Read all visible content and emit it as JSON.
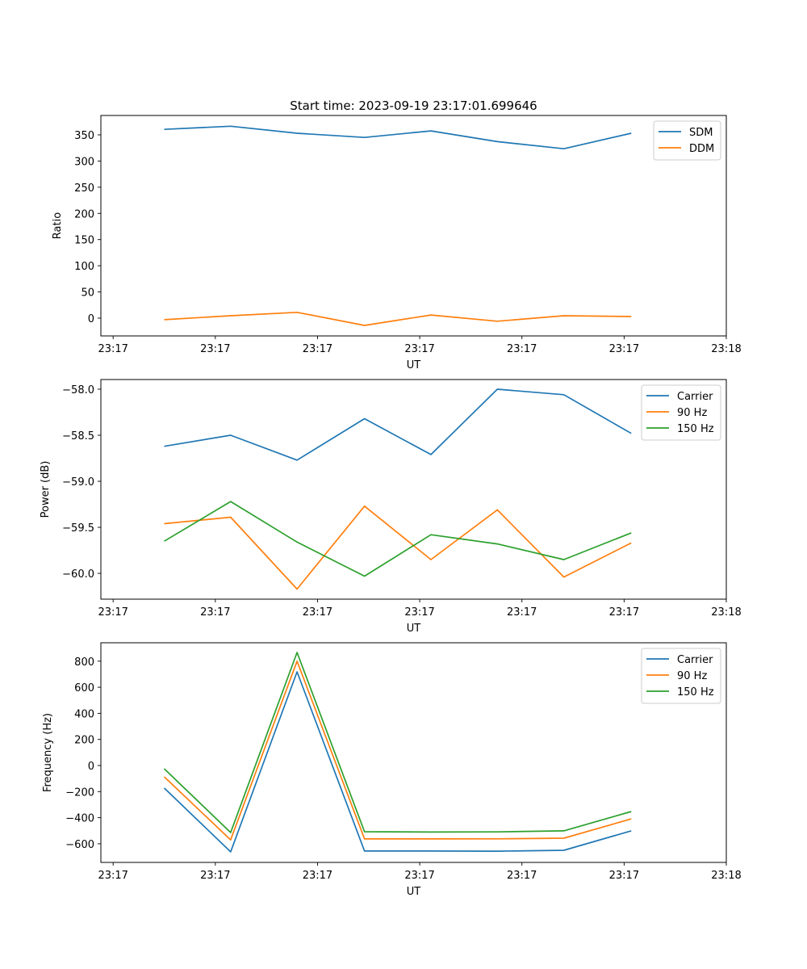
{
  "chart_data": [
    {
      "type": "line",
      "title": "Start time: 2023-09-19 23:17:01.699646",
      "xlabel": "UT",
      "ylabel": "Ratio",
      "x_units": "seconds after 23:17:00",
      "x": [
        5.0,
        11.5,
        18.0,
        24.6,
        31.1,
        37.6,
        44.1,
        50.7
      ],
      "xlim": [
        -1.2,
        60
      ],
      "xticks": [
        0,
        10,
        20,
        30,
        40,
        50,
        60
      ],
      "xtick_labels": [
        "23:17",
        "23:17",
        "23:17",
        "23:17",
        "23:17",
        "23:17",
        "23:18"
      ],
      "ylim": [
        -34,
        387
      ],
      "yticks": [
        0,
        50,
        100,
        150,
        200,
        250,
        300,
        350
      ],
      "ytick_labels": [
        "0",
        "50",
        "100",
        "150",
        "200",
        "250",
        "300",
        "350"
      ],
      "legend": "top-right",
      "series": [
        {
          "name": "SDM",
          "color": "#1f77b4",
          "values": [
            360.5,
            366.5,
            353,
            345,
            357.5,
            337,
            323.5,
            353
          ]
        },
        {
          "name": "DDM",
          "color": "#ff7f0e",
          "values": [
            -3,
            4.5,
            11,
            -14,
            6,
            -6,
            4.5,
            3
          ]
        }
      ]
    },
    {
      "type": "line",
      "title": "",
      "xlabel": "UT",
      "ylabel": "Power (dB)",
      "x_units": "seconds after 23:17:00",
      "x": [
        5.0,
        11.5,
        18.0,
        24.6,
        31.1,
        37.6,
        44.1,
        50.7
      ],
      "xlim": [
        -1.2,
        60
      ],
      "xticks": [
        0,
        10,
        20,
        30,
        40,
        50,
        60
      ],
      "xtick_labels": [
        "23:17",
        "23:17",
        "23:17",
        "23:17",
        "23:17",
        "23:17",
        "23:18"
      ],
      "ylim": [
        -60.28,
        -57.895
      ],
      "yticks": [
        -60.0,
        -59.5,
        -59.0,
        -58.5,
        -58.0
      ],
      "ytick_labels": [
        "−60.0",
        "−59.5",
        "−59.0",
        "−58.5",
        "−58.0"
      ],
      "legend": "top-right",
      "series": [
        {
          "name": "Carrier",
          "color": "#1f77b4",
          "values": [
            -58.62,
            -58.5,
            -58.77,
            -58.32,
            -58.71,
            -58.0,
            -58.06,
            -58.48
          ]
        },
        {
          "name": "90 Hz",
          "color": "#ff7f0e",
          "values": [
            -59.46,
            -59.39,
            -60.17,
            -59.27,
            -59.85,
            -59.31,
            -60.04,
            -59.67
          ]
        },
        {
          "name": "150 Hz",
          "color": "#2ca02c",
          "values": [
            -59.65,
            -59.22,
            -59.66,
            -60.03,
            -59.58,
            -59.68,
            -59.85,
            -59.56
          ]
        }
      ]
    },
    {
      "type": "line",
      "title": "",
      "xlabel": "UT",
      "ylabel": "Frequency (Hz)",
      "x_units": "seconds after 23:17:00",
      "x": [
        5.0,
        11.5,
        18.0,
        24.6,
        31.1,
        37.6,
        44.1,
        50.7
      ],
      "xlim": [
        -1.2,
        60
      ],
      "xticks": [
        0,
        10,
        20,
        30,
        40,
        50,
        60
      ],
      "xtick_labels": [
        "23:17",
        "23:17",
        "23:17",
        "23:17",
        "23:17",
        "23:17",
        "23:18"
      ],
      "ylim": [
        -743,
        941
      ],
      "yticks": [
        -600,
        -400,
        -200,
        0,
        200,
        400,
        600,
        800
      ],
      "ytick_labels": [
        "−600",
        "−400",
        "−200",
        "0",
        "200",
        "400",
        "600",
        "800"
      ],
      "legend": "top-right",
      "series": [
        {
          "name": "Carrier",
          "color": "#1f77b4",
          "values": [
            -173,
            -662,
            718,
            -656,
            -656,
            -657,
            -650,
            -501
          ]
        },
        {
          "name": "90 Hz",
          "color": "#ff7f0e",
          "values": [
            -87,
            -570,
            800,
            -563,
            -563,
            -562,
            -557,
            -409
          ]
        },
        {
          "name": "150 Hz",
          "color": "#2ca02c",
          "values": [
            -25,
            -514,
            867,
            -508,
            -510,
            -509,
            -501,
            -353
          ]
        }
      ]
    }
  ]
}
